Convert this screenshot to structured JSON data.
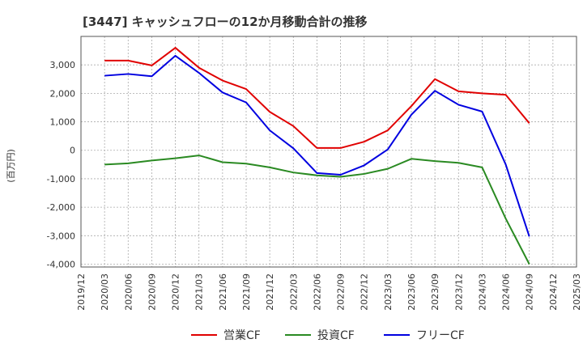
{
  "chart_data": {
    "type": "line",
    "title": "[3447]  キャッシュフローの12か月移動合計の推移",
    "ylabel": "(百万円)",
    "xlabel": "",
    "ylim": [
      -4100,
      4000
    ],
    "yticks": [
      3000,
      2000,
      1000,
      0,
      -1000,
      -2000,
      -3000,
      -4000
    ],
    "ytick_labels": [
      "3,000",
      "2,000",
      "1,000",
      "0",
      "-1,000",
      "-2,000",
      "-3,000",
      "-4,000"
    ],
    "x_labels": [
      "2019/12",
      "2020/03",
      "2020/06",
      "2020/09",
      "2020/12",
      "2021/03",
      "2021/06",
      "2021/09",
      "2021/12",
      "2022/03",
      "2022/06",
      "2022/09",
      "2022/12",
      "2023/03",
      "2023/06",
      "2023/09",
      "2023/12",
      "2024/03",
      "2024/06",
      "2024/09",
      "2024/12",
      "2025/03"
    ],
    "grid": true,
    "legend_position": "bottom",
    "series": [
      {
        "name": "営業CF",
        "color": "#e00000",
        "values": [
          null,
          3150,
          3150,
          2980,
          3600,
          2900,
          2450,
          2150,
          1350,
          850,
          80,
          80,
          300,
          700,
          1550,
          2500,
          2070,
          2000,
          1950,
          950,
          null,
          null
        ]
      },
      {
        "name": "投資CF",
        "color": "#2a8a22",
        "values": [
          null,
          -500,
          -460,
          -360,
          -280,
          -180,
          -420,
          -470,
          -600,
          -780,
          -880,
          -930,
          -830,
          -650,
          -300,
          -380,
          -440,
          -600,
          -2400,
          -4000,
          null,
          null
        ]
      },
      {
        "name": "フリーCF",
        "color": "#0000e0",
        "values": [
          null,
          2620,
          2680,
          2600,
          3320,
          2720,
          2030,
          1680,
          700,
          70,
          -800,
          -860,
          -530,
          30,
          1250,
          2090,
          1600,
          1360,
          -500,
          -3030,
          null,
          null
        ]
      }
    ]
  }
}
